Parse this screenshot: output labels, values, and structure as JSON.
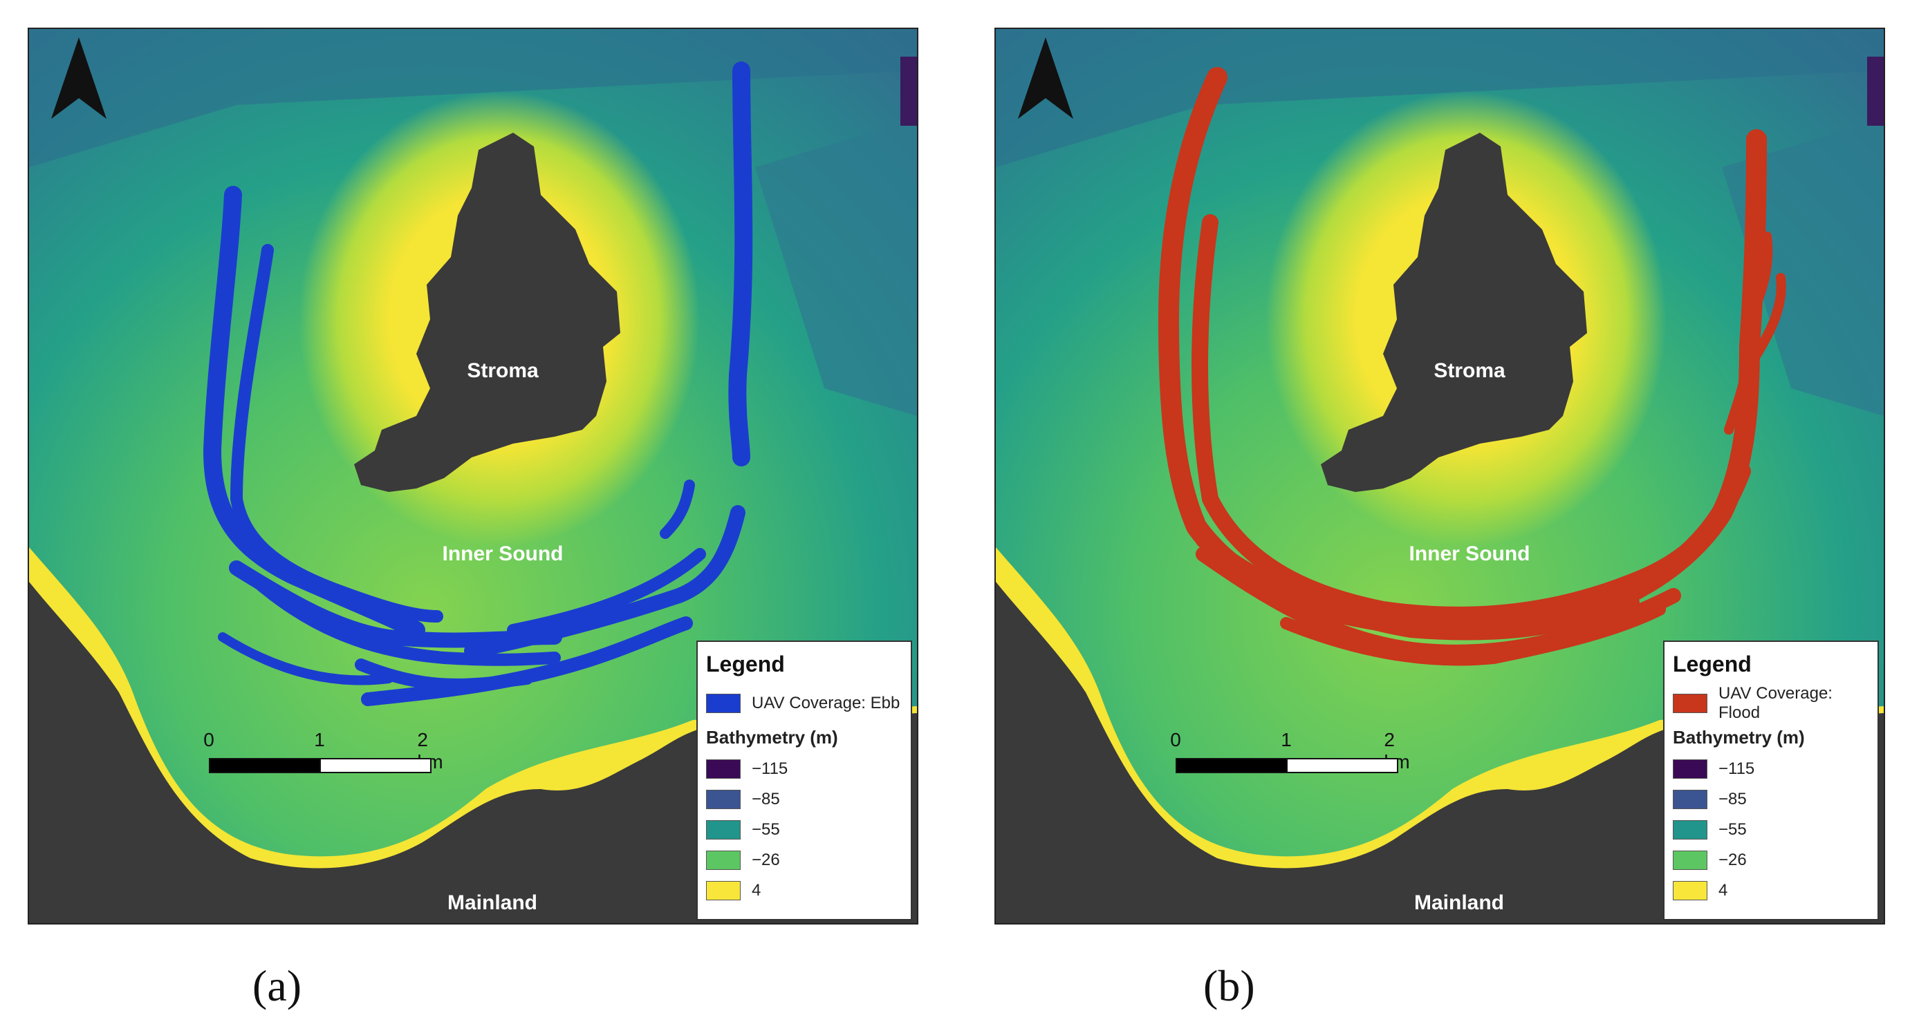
{
  "panels": [
    {
      "id": "a",
      "label_text": "(a)",
      "labels": {
        "stroma": "Stroma",
        "inner_sound": "Inner Sound",
        "mainland": "Mainland"
      },
      "coverage_label": "UAV Coverage: Ebb",
      "coverage_color": "#1a3dd0",
      "legend_title": "Legend",
      "bathymetry_title": "Bathymetry (m)",
      "scale": {
        "ticks": [
          "0",
          "1",
          "2 km"
        ]
      }
    },
    {
      "id": "b",
      "label_text": "(b)",
      "labels": {
        "stroma": "Stroma",
        "inner_sound": "Inner Sound",
        "mainland": "Mainland"
      },
      "coverage_label": "UAV Coverage: Flood",
      "coverage_color": "#c8361c",
      "legend_title": "Legend",
      "bathymetry_title": "Bathymetry (m)",
      "scale": {
        "ticks": [
          "0",
          "1",
          "2 km"
        ]
      }
    }
  ],
  "bathymetry_classes": [
    {
      "value": "−115",
      "color": "#3b0a56"
    },
    {
      "value": "−85",
      "color": "#3a5592"
    },
    {
      "value": "−55",
      "color": "#21958b"
    },
    {
      "value": "−26",
      "color": "#5cc762"
    },
    {
      "value": "4",
      "color": "#f8e73a"
    }
  ],
  "colors": {
    "land": "#3a3a3a",
    "deep_water": "#2f6f8c",
    "mid_water": "#27a089",
    "shallow_water": "#7cd052",
    "shore": "#f5e535"
  }
}
